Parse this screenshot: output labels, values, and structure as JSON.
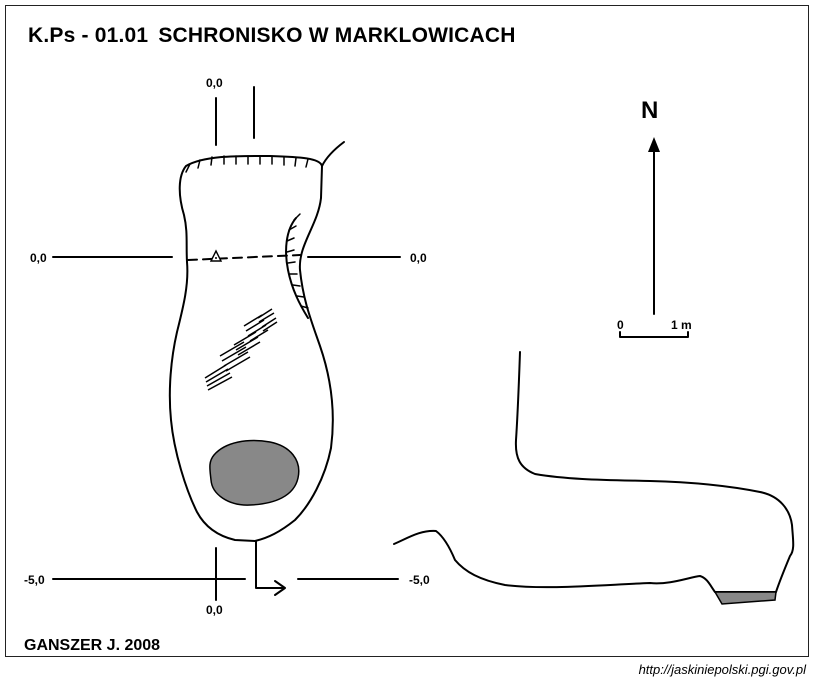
{
  "title": {
    "code": "K.Ps - 01.01",
    "name": "SCHRONISKO W MARKLOWICACH"
  },
  "author": "GANSZER J.  2008",
  "source_url": "http://jaskiniepolski.pgi.gov.pl",
  "north_label": "N",
  "scale": {
    "start": "0",
    "end": "1 m"
  },
  "section_labels": {
    "top_center": "0,0",
    "left_middle": "0,0",
    "right_middle": "0,0",
    "left_bottom": "-5,0",
    "right_bottom": "-5,0",
    "bottom_center": "0,0"
  },
  "colors": {
    "ink": "#000000",
    "floor_fill": "#888888",
    "background": "#ffffff"
  },
  "symbols": [
    "survey-point-icon",
    "rubble-hatching",
    "north-arrow-icon",
    "scale-bar"
  ]
}
